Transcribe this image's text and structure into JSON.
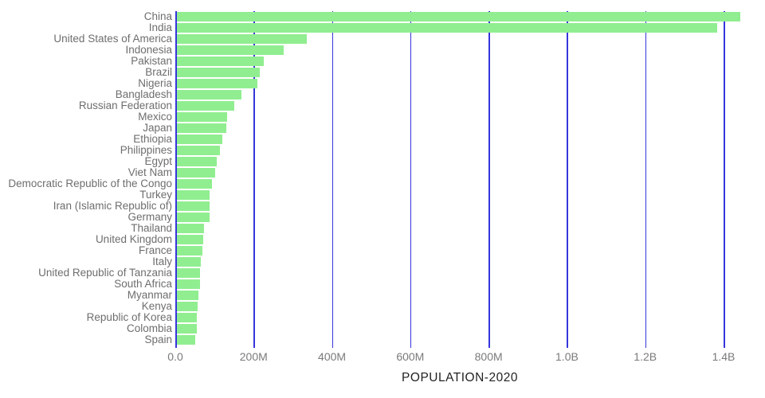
{
  "chart_data": {
    "type": "bar",
    "orientation": "horizontal",
    "title": "POPULATION-2020",
    "xlabel": "POPULATION-2020",
    "ylabel": "",
    "categories": [
      "China",
      "India",
      "United States of America",
      "Indonesia",
      "Pakistan",
      "Brazil",
      "Nigeria",
      "Bangladesh",
      "Russian Federation",
      "Mexico",
      "Japan",
      "Ethiopia",
      "Philippines",
      "Egypt",
      "Viet Nam",
      "Democratic Republic of the Congo",
      "Turkey",
      "Iran (Islamic Republic of)",
      "Germany",
      "Thailand",
      "United Kingdom",
      "France",
      "Italy",
      "United Republic of Tanzania",
      "South Africa",
      "Myanmar",
      "Kenya",
      "Republic of Korea",
      "Colombia",
      "Spain"
    ],
    "values_millions": [
      1439.3,
      1380.0,
      331.0,
      273.5,
      220.9,
      212.6,
      206.1,
      164.7,
      145.9,
      128.9,
      126.5,
      115.0,
      109.6,
      102.3,
      97.3,
      89.6,
      84.3,
      84.0,
      83.8,
      69.8,
      67.9,
      65.3,
      60.5,
      59.7,
      59.3,
      54.4,
      53.8,
      51.3,
      50.9,
      46.8
    ],
    "xtick_labels": [
      "0.0",
      "200M",
      "400M",
      "600M",
      "800M",
      "1.0B",
      "1.2B",
      "1.4B"
    ],
    "xtick_values_millions": [
      0,
      200,
      400,
      600,
      800,
      1000,
      1200,
      1400
    ],
    "xlim_millions": [
      0,
      1453
    ],
    "grid": "vertical-gridlines-on",
    "legend": "none",
    "colors": {
      "bar": "#90EE90",
      "gridline": "#3535DB",
      "axis_line": "#3535DB",
      "tick_text": "#7A7A7A",
      "category_text": "#6E6E6E",
      "title_text": "#222222",
      "background": "#FFFFFF"
    }
  }
}
